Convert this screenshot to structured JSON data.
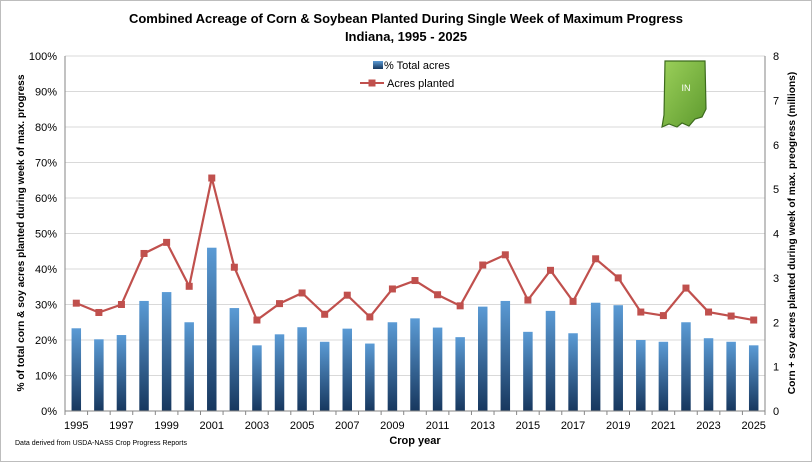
{
  "chart_data": {
    "type": "bar",
    "title": "Combined Acreage of Corn & Soybean Planted During Single Week of Maximum Progress",
    "subtitle": "Indiana, 1995 - 2025",
    "xlabel": "Crop year",
    "ylabel_left": "% of total corn & soy acres planted during week of max. progress",
    "ylabel_right": "Corn + soy acres planted during week of max. preogress (millions)",
    "source_note": "Data derived from USDA-NASS Crop Progress Reports",
    "state_label": "IN",
    "categories": [
      1995,
      1996,
      1997,
      1998,
      1999,
      2000,
      2001,
      2002,
      2003,
      2004,
      2005,
      2006,
      2007,
      2008,
      2009,
      2010,
      2011,
      2012,
      2013,
      2014,
      2015,
      2016,
      2017,
      2018,
      2019,
      2020,
      2021,
      2022,
      2023,
      2024,
      2025
    ],
    "x_tick_labels": [
      "1995",
      "1997",
      "1999",
      "2001",
      "2003",
      "2005",
      "2007",
      "2009",
      "2011",
      "2013",
      "2015",
      "2017",
      "2019",
      "2021",
      "2023",
      "2025"
    ],
    "y_left": {
      "min": 0,
      "max": 100,
      "step": 10,
      "format": "percent"
    },
    "y_right": {
      "min": 0,
      "max": 8,
      "step": 1
    },
    "series": [
      {
        "name": "% Total acres",
        "type": "bar",
        "axis": "left",
        "values": [
          23.3,
          20.2,
          21.4,
          31.0,
          33.5,
          25.0,
          46.0,
          29.0,
          18.5,
          21.6,
          23.6,
          19.5,
          23.2,
          19.0,
          25.0,
          26.1,
          23.5,
          20.8,
          29.4,
          31.0,
          22.3,
          28.2,
          21.9,
          30.5,
          29.8,
          20.0,
          19.5,
          25.0,
          20.5,
          19.5,
          18.5
        ]
      },
      {
        "name": "Acres planted",
        "type": "line",
        "axis": "right",
        "values": [
          2.43,
          2.22,
          2.4,
          3.55,
          3.8,
          2.81,
          5.25,
          3.24,
          2.05,
          2.42,
          2.66,
          2.18,
          2.61,
          2.12,
          2.75,
          2.94,
          2.62,
          2.37,
          3.29,
          3.52,
          2.5,
          3.17,
          2.47,
          3.43,
          3.0,
          2.23,
          2.15,
          2.77,
          2.23,
          2.14,
          2.05
        ]
      }
    ],
    "colors": {
      "bar_top": "#5b9bd5",
      "bar_bottom": "#17375e",
      "line": "#c0504d",
      "marker": "#c0504d",
      "grid": "#d9d9d9",
      "indiana_fill": "#7ab648",
      "indiana_edge": "#3d6b1e"
    },
    "grid": true,
    "legend_position": "top-center"
  }
}
